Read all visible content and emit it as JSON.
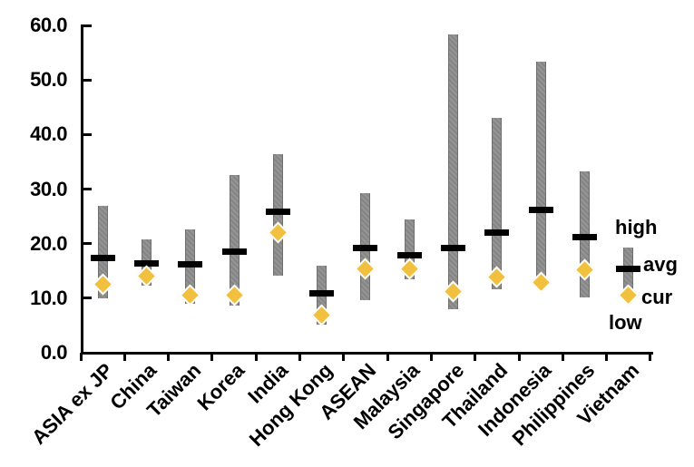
{
  "chart_data": {
    "type": "bar",
    "subtype": "floating-range-bars-with-markers",
    "title": "",
    "xlabel": "",
    "ylabel": "",
    "categories": [
      "ASIA ex JP",
      "China",
      "Taiwan",
      "Korea",
      "India",
      "Hong Kong",
      "ASEAN",
      "Malaysia",
      "Singapore",
      "Thailand",
      "Indonesia",
      "Philippines",
      "Vietnam"
    ],
    "series": [
      {
        "name": "high",
        "marker": "range-bar-top",
        "values": [
          26.9,
          20.7,
          22.6,
          32.6,
          36.4,
          15.9,
          29.3,
          24.5,
          58.4,
          43.0,
          53.3,
          33.2,
          19.2
        ]
      },
      {
        "name": "avg",
        "marker": "black-dash",
        "values": [
          17.4,
          16.3,
          16.2,
          18.6,
          25.9,
          10.9,
          19.2,
          17.8,
          19.2,
          22.1,
          26.2,
          21.2,
          15.3
        ]
      },
      {
        "name": "cur",
        "marker": "yellow-diamond",
        "values": [
          12.5,
          14.1,
          10.5,
          10.6,
          22.0,
          6.9,
          15.4,
          15.3,
          11.3,
          13.9,
          12.9,
          15.2,
          10.5
        ]
      },
      {
        "name": "low",
        "marker": "range-bar-bottom",
        "values": [
          9.9,
          12.3,
          9.0,
          8.7,
          14.2,
          5.2,
          9.6,
          13.4,
          8.0,
          11.6,
          13.8,
          10.1,
          11.7
        ]
      }
    ],
    "ylim": [
      0,
      60
    ],
    "ytick_step": 10,
    "ytick_labels": [
      "0.0",
      "10.0",
      "20.0",
      "30.0",
      "40.0",
      "50.0",
      "60.0"
    ],
    "grid": false,
    "legend": [
      "high",
      "avg",
      "cur",
      "low"
    ],
    "legend_position": "right-of-last-bar"
  },
  "colors": {
    "range_bar": "#8c8c8c",
    "range_bar_edge": "#6e6e6e",
    "avg_dash": "#000000",
    "cur_diamond": "#f0c03e",
    "cur_diamond_edge": "#ffffff",
    "axis": "#000000",
    "text": "#000000",
    "background": "#ffffff"
  }
}
